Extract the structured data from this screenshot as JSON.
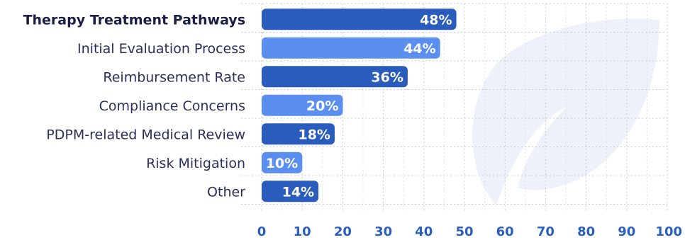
{
  "chart_data": {
    "type": "bar",
    "orientation": "horizontal",
    "categories": [
      "Therapy Treatment Pathways",
      "Initial Evaluation Process",
      "Reimbursement Rate",
      "Compliance Concerns",
      "PDPM-related Medical Review",
      "Risk Mitigation",
      "Other"
    ],
    "values": [
      48,
      44,
      36,
      20,
      18,
      10,
      14
    ],
    "value_labels": [
      "48%",
      "44%",
      "36%",
      "20%",
      "18%",
      "10%",
      "14%"
    ],
    "bar_colors": [
      "#2a5cbd",
      "#5a8ff0",
      "#2a5cbd",
      "#5a8ff0",
      "#2a5cbd",
      "#5a8ff0",
      "#2a5cbd"
    ],
    "xlim": [
      0,
      100
    ],
    "x_ticks": [
      0,
      10,
      20,
      30,
      40,
      50,
      60,
      70,
      80,
      90,
      100
    ],
    "grid": true,
    "title": "",
    "xlabel": "",
    "ylabel": ""
  }
}
